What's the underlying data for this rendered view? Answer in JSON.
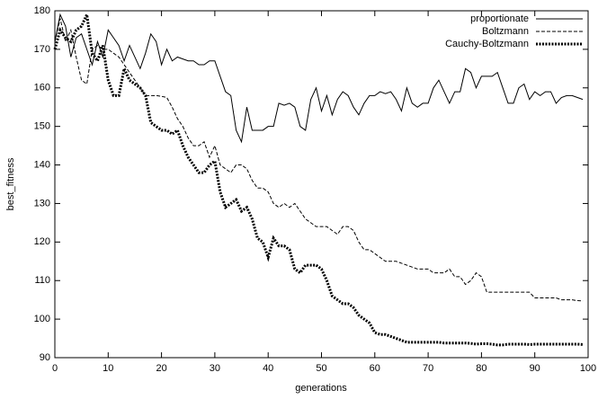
{
  "chart_data": {
    "type": "line",
    "x_label": "generations",
    "y_label": "best_fitness",
    "xlim": [
      0,
      100
    ],
    "ylim": [
      90,
      180
    ],
    "xticks": [
      0,
      10,
      20,
      30,
      40,
      50,
      60,
      70,
      80,
      90,
      100
    ],
    "yticks": [
      90,
      100,
      110,
      120,
      130,
      140,
      150,
      160,
      170,
      180
    ],
    "legend": "top-right",
    "x": [
      0,
      1,
      2,
      3,
      4,
      5,
      6,
      7,
      8,
      9,
      10,
      11,
      12,
      13,
      14,
      15,
      16,
      17,
      18,
      19,
      20,
      21,
      22,
      23,
      24,
      25,
      26,
      27,
      28,
      29,
      30,
      31,
      32,
      33,
      34,
      35,
      36,
      37,
      38,
      39,
      40,
      41,
      42,
      43,
      44,
      45,
      46,
      47,
      48,
      49,
      50,
      51,
      52,
      53,
      54,
      55,
      56,
      57,
      58,
      59,
      60,
      61,
      62,
      63,
      64,
      65,
      66,
      67,
      68,
      69,
      70,
      71,
      72,
      73,
      74,
      75,
      76,
      77,
      78,
      79,
      80,
      81,
      82,
      83,
      84,
      85,
      86,
      87,
      88,
      89,
      90,
      91,
      92,
      93,
      94,
      95,
      96,
      97,
      98,
      99
    ],
    "series": [
      {
        "name": "proportionate",
        "color": "#000000",
        "line_style": "solid",
        "line_width": 1,
        "values": [
          172,
          179,
          176,
          168,
          173,
          174,
          170,
          166,
          172,
          168,
          175,
          173,
          171,
          167,
          171,
          168,
          165,
          169,
          174,
          172,
          166,
          170,
          167,
          168,
          167.5,
          167,
          167,
          166,
          166,
          167,
          167,
          163,
          159,
          158,
          149,
          146,
          155,
          149,
          149,
          149,
          150,
          150,
          156,
          155.5,
          156,
          155,
          150,
          149,
          157,
          160,
          154,
          158,
          153,
          157,
          159,
          158,
          155,
          153,
          156,
          158,
          158,
          159,
          158.5,
          159,
          157,
          154,
          160,
          156,
          155,
          156,
          156,
          160,
          162,
          159,
          156,
          159,
          159,
          165,
          164,
          160,
          163,
          163,
          163,
          164,
          160,
          156,
          156,
          160,
          161,
          157,
          159,
          158,
          159,
          159,
          156,
          157.5,
          158,
          158,
          157.5,
          157
        ]
      },
      {
        "name": "Boltzmann",
        "color": "#000000",
        "line_style": "dashed",
        "line_width": 1,
        "values": [
          172,
          178,
          172,
          175,
          168,
          162,
          161,
          170,
          171,
          170,
          170,
          169,
          168,
          166,
          164,
          162,
          160,
          158,
          158,
          158,
          157.8,
          157.5,
          155,
          152,
          150,
          147,
          145,
          145,
          146,
          142,
          145,
          140,
          139,
          138,
          140,
          140,
          139,
          136,
          134,
          134,
          133,
          130,
          129,
          130,
          129,
          130,
          128,
          126,
          125,
          124,
          124,
          124,
          123,
          122,
          124,
          124,
          123,
          120,
          118,
          118,
          117,
          116,
          115,
          115,
          115,
          114.5,
          114,
          113.5,
          113,
          113,
          113,
          112,
          112,
          112,
          113,
          111,
          111,
          109,
          110,
          112,
          111,
          107,
          107,
          107,
          107,
          107,
          107,
          107,
          107,
          107,
          105.5,
          105.5,
          105.5,
          105.5,
          105.5,
          105,
          105,
          105,
          104.8,
          104.7
        ]
      },
      {
        "name": "Cauchy-Boltzmann",
        "color": "#000000",
        "line_style": "dotted",
        "line_width": 3,
        "values": [
          170,
          175,
          173,
          172,
          175,
          176,
          179,
          169,
          167,
          171,
          162,
          158,
          158,
          165,
          162,
          161,
          160,
          158,
          151,
          150,
          149,
          149,
          148,
          149,
          145,
          142,
          140,
          138,
          138,
          140,
          141,
          133,
          129,
          130,
          131,
          128,
          129,
          126,
          121,
          120,
          116,
          121,
          119,
          119,
          118,
          113,
          112,
          114,
          114,
          114,
          113,
          110,
          106,
          105,
          104,
          104,
          103,
          101,
          100,
          99,
          96.5,
          96,
          96,
          95.5,
          95,
          94.5,
          94,
          94,
          94,
          94,
          94,
          94,
          94,
          93.8,
          93.8,
          93.8,
          93.8,
          93.8,
          93.7,
          93.5,
          93.6,
          93.6,
          93.5,
          93.3,
          93.3,
          93.5,
          93.5,
          93.5,
          93.5,
          93.4,
          93.5,
          93.5,
          93.5,
          93.5,
          93.5,
          93.5,
          93.5,
          93.5,
          93.5,
          93.4
        ]
      }
    ]
  }
}
